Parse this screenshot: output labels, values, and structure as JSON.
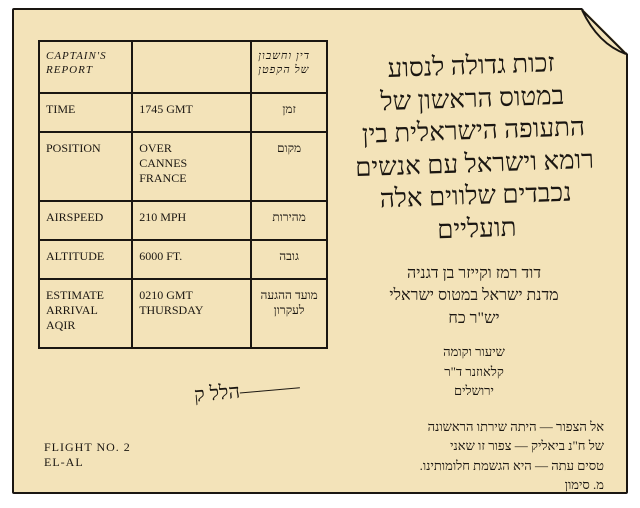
{
  "colors": {
    "paper": "#f3e3b9",
    "ink": "#1a1611",
    "page_bg": "#ffffff"
  },
  "table": {
    "header": {
      "col1": "CAPTAIN'S REPORT",
      "col2": "",
      "col3": "דין וחשבון של הקפטן"
    },
    "rows": [
      {
        "label_en": "TIME",
        "value_en": "1745 GMT",
        "label_he": "זמן"
      },
      {
        "label_en": "POSITION",
        "value_en": "OVER\nCANNES\nFRANCE",
        "label_he": "מקום"
      },
      {
        "label_en": "AIRSPEED",
        "value_en": "210 MPH",
        "label_he": "מהירות"
      },
      {
        "label_en": "ALTITUDE",
        "value_en": "6000 FT.",
        "label_he": "גובה"
      },
      {
        "label_en": "ESTIMATE\nARRIVAL\nAQIR",
        "value_en": "0210 GMT\nTHURSDAY",
        "label_he": "מועד ההגעה\nלעקרון"
      }
    ]
  },
  "signature": "הלל ק———",
  "footer": {
    "line1": "FLIGHT NO. 2",
    "line2": "EL-AL"
  },
  "hebrew": {
    "big_lines": [
      "זכות גדולה לנסוע",
      "במטוס הראשון של",
      "התעופה הישראלית בין",
      "רומא וישראל עם אנשים",
      "נכבדים שלווים אלה",
      "תועליים"
    ],
    "mid_lines": [
      "דוד רמז וקייזר בן דגניה",
      "מדנת ישראל במטוס ישראלי",
      "יש\"ר כח"
    ],
    "small_lines": [
      "שיעור וקומה",
      "קלאוזנר ד\"ר",
      "ירושלים"
    ],
    "para_lines": [
      "אל הצפור — היתה שירתו הראשונה",
      "של ח\"נ ביאליק — צפור זו שאני",
      "טסים עתה — היא הגשמת חלומותינו.",
      "מ. סימון"
    ]
  }
}
